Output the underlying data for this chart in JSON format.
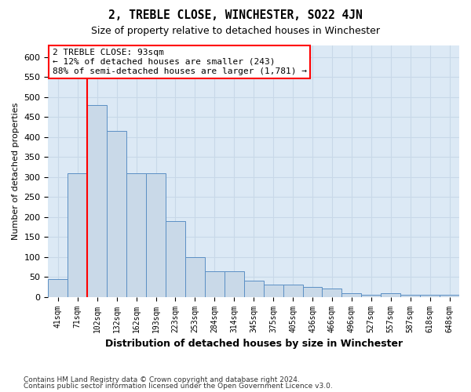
{
  "title": "2, TREBLE CLOSE, WINCHESTER, SO22 4JN",
  "subtitle": "Size of property relative to detached houses in Winchester",
  "xlabel": "Distribution of detached houses by size in Winchester",
  "ylabel": "Number of detached properties",
  "bar_labels": [
    "41sqm",
    "71sqm",
    "102sqm",
    "132sqm",
    "162sqm",
    "193sqm",
    "223sqm",
    "253sqm",
    "284sqm",
    "314sqm",
    "345sqm",
    "375sqm",
    "405sqm",
    "436sqm",
    "466sqm",
    "496sqm",
    "527sqm",
    "557sqm",
    "587sqm",
    "618sqm",
    "648sqm"
  ],
  "bar_values": [
    45,
    310,
    480,
    415,
    310,
    310,
    190,
    100,
    65,
    65,
    40,
    30,
    30,
    25,
    20,
    10,
    5,
    10,
    5,
    5,
    5
  ],
  "bar_color": "#c9d9e8",
  "bar_edge_color": "#5b8fc4",
  "grid_color": "#c8d8e8",
  "background_color": "#dce9f5",
  "vline_x": 1.5,
  "vline_color": "red",
  "annotation_text": "2 TREBLE CLOSE: 93sqm\n← 12% of detached houses are smaller (243)\n88% of semi-detached houses are larger (1,781) →",
  "ylim": [
    0,
    630
  ],
  "yticks": [
    0,
    50,
    100,
    150,
    200,
    250,
    300,
    350,
    400,
    450,
    500,
    550,
    600
  ],
  "footnote1": "Contains HM Land Registry data © Crown copyright and database right 2024.",
  "footnote2": "Contains public sector information licensed under the Open Government Licence v3.0."
}
